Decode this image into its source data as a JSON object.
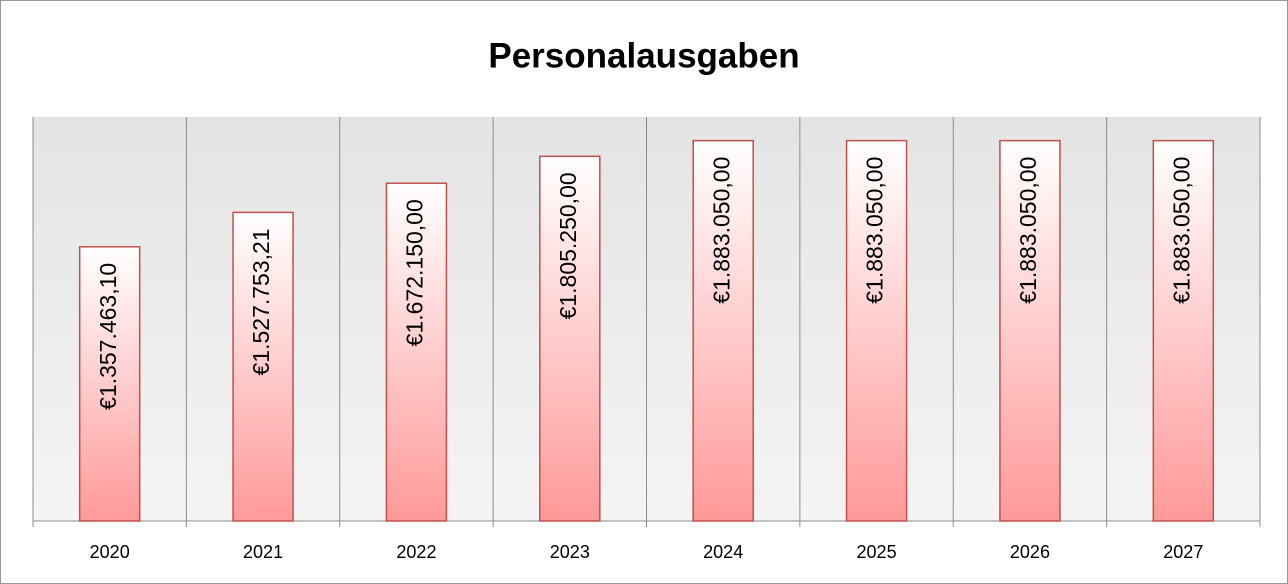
{
  "chart_data": {
    "type": "bar",
    "title": "Personalausgaben",
    "categories": [
      "2020",
      "2021",
      "2022",
      "2023",
      "2024",
      "2025",
      "2026",
      "2027"
    ],
    "values": [
      1357463.1,
      1527753.21,
      1672150.0,
      1805250.0,
      1883050.0,
      1883050.0,
      1883050.0,
      1883050.0
    ],
    "value_labels": [
      "€1.357.463,10",
      "€1.527.753,21",
      "€1.672.150,00",
      "€1.805.250,00",
      "€1.883.050,00",
      "€1.883.050,00",
      "€1.883.050,00",
      "€1.883.050,00"
    ],
    "color": "#ff9999",
    "ylim": [
      0,
      2000000
    ]
  }
}
